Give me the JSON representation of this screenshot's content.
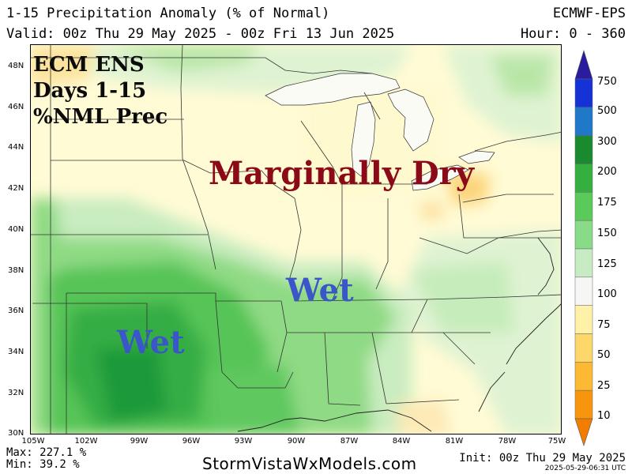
{
  "header": {
    "title": "1-15 Precipitation Anomaly (% of Normal)",
    "valid": "Valid: 00z Thu 29 May 2025 - 00z Fri 13 Jun 2025",
    "model": "ECMWF-EPS",
    "hour": "Hour: 0 - 360"
  },
  "map": {
    "latitudes": [
      "48N",
      "46N",
      "44N",
      "42N",
      "40N",
      "38N",
      "36N",
      "34N",
      "32N",
      "30N"
    ],
    "longitudes": [
      "105W",
      "102W",
      "99W",
      "96W",
      "93W",
      "90W",
      "87W",
      "84W",
      "81W",
      "78W",
      "75W"
    ],
    "annotations": {
      "corner_lines": [
        "ECM ENS",
        "Days 1-15",
        "%NML Prec"
      ],
      "dry": "Marginally Dry",
      "wet_1": "Wet",
      "wet_2": "Wet"
    },
    "colors": {
      "dry_label": "#8b0a17",
      "wet_label": "#3a56c8",
      "near_normal": "#fffbd5",
      "slightly_wet": "#dff3d2",
      "wet": "#6ecc68",
      "very_wet": "#1e9a3a"
    }
  },
  "colorbar": {
    "labels": [
      "750",
      "500",
      "300",
      "200",
      "175",
      "150",
      "125",
      "100",
      "75",
      "50",
      "25",
      "10"
    ],
    "colors": [
      "#2b1b9e",
      "#1432d6",
      "#1f78c8",
      "#1a8a2e",
      "#35b040",
      "#5acb5a",
      "#89db88",
      "#c7ebc3",
      "#f6f6f4",
      "#fff1a8",
      "#fdd769",
      "#fbb934",
      "#f7960e",
      "#f27d00"
    ]
  },
  "footer": {
    "max": "Max: 227.1 %",
    "min": "Min: 39.2 %",
    "site": "StormVistaWxModels.com",
    "init": "Init: 00z Thu 29 May 2025",
    "stamp": "2025-05-29-06:31 UTC"
  }
}
